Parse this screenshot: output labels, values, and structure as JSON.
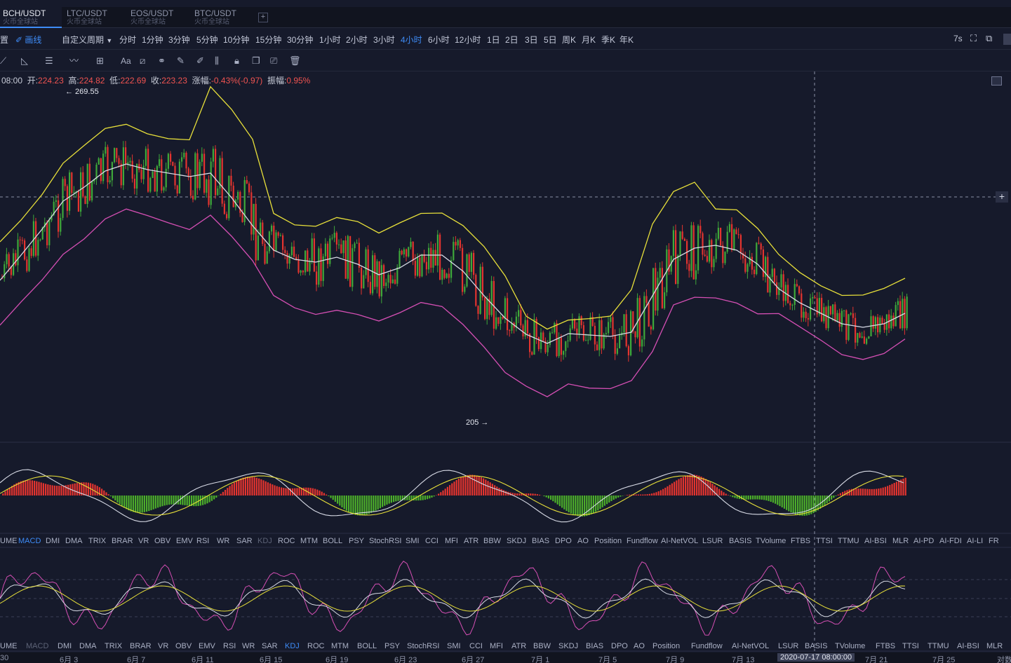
{
  "tabs": [
    {
      "pair": "BCH/USDT",
      "sub": "火币全球站"
    },
    {
      "pair": "LTC/USDT",
      "sub": "火币全球站"
    },
    {
      "pair": "EOS/USDT",
      "sub": "火币全球站"
    },
    {
      "pair": "BTC/USDT",
      "sub": "火币全球站"
    }
  ],
  "add_tab": "+",
  "toolbar": {
    "settings": "置",
    "draw": "画线",
    "custom_period": "自定义周期",
    "periods": [
      "分时",
      "1分钟",
      "3分钟",
      "5分钟",
      "10分钟",
      "15分钟",
      "30分钟",
      "1小时",
      "2小时",
      "3小时",
      "4小时",
      "6小时",
      "12小时",
      "1日",
      "2日",
      "3日",
      "5日",
      "周K",
      "月K",
      "季K",
      "年K"
    ],
    "active_period": "4小时",
    "refresh": "7s"
  },
  "ohlc": {
    "time": "08:00",
    "open_label": "开:",
    "open": "224.23",
    "high_label": "高:",
    "high": "224.82",
    "low_label": "低:",
    "low": "222.69",
    "close_label": "收:",
    "close": "223.23",
    "change_label": "涨幅:",
    "change": "-0.43%(-0.97)",
    "amp_label": "振幅:",
    "amp": "0.95%"
  },
  "annotations": {
    "high_marker": "← 269.55",
    "low_marker": "205 →"
  },
  "indicator_row1": [
    "UME",
    "MACD",
    "DMI",
    "DMA",
    "TRIX",
    "BRAR",
    "VR",
    "OBV",
    "EMV",
    "RSI",
    "WR",
    "SAR",
    "KDJ",
    "ROC",
    "MTM",
    "BOLL",
    "PSY",
    "StochRSI",
    "SMI",
    "CCI",
    "MFI",
    "ATR",
    "BBW",
    "SKDJ",
    "BIAS",
    "DPO",
    "AO",
    "Position",
    "Fundflow",
    "AI-NetVOL",
    "LSUR",
    "BASIS",
    "TVolume",
    "FTBS",
    "TTSI",
    "TTMU",
    "AI-BSI",
    "MLR",
    "AI-PD",
    "AI-FDI",
    "AI-LI",
    "FR"
  ],
  "indicator_row1_active": "MACD",
  "indicator_row1_dim": "KDJ",
  "indicator_row2": [
    "UME",
    "MACD",
    "DMI",
    "DMA",
    "TRIX",
    "BRAR",
    "VR",
    "OBV",
    "EMV",
    "RSI",
    "WR",
    "SAR",
    "KDJ",
    "ROC",
    "MTM",
    "BOLL",
    "PSY",
    "StochRSI",
    "SMI",
    "CCI",
    "MFI",
    "ATR",
    "BBW",
    "SKDJ",
    "BIAS",
    "DPO",
    "AO",
    "Position",
    "Fundflow",
    "AI-NetVOL",
    "LSUR",
    "BASIS",
    "TVolume",
    "FTBS",
    "TTSI",
    "TTMU",
    "AI-BSI",
    "MLR"
  ],
  "indicator_row2_active": "KDJ",
  "indicator_row2_dim": "MACD",
  "x_axis": [
    "30",
    "6月 3",
    "6月 7",
    "6月 11",
    "6月 15",
    "6月 19",
    "6月 23",
    "6月 27",
    "7月 1",
    "7月 5",
    "7月 9",
    "7月 13",
    "2020-07-17 08:00:00",
    "7月 21",
    "7月 25",
    "对数"
  ],
  "x_axis_highlight": "2020-07-17 08:00:00",
  "crosshair_plus": "+",
  "colors": {
    "up": "#26a69a",
    "down": "#ef5350",
    "candle_up": "#3fa83a",
    "candle_down": "#e3342f",
    "upper_band": "#e8e03a",
    "middle_band": "#d8dbe6",
    "lower_band": "#d54fb4",
    "accent": "#3e8cf7"
  },
  "icons": [
    "draw-pencil-icon",
    "line-icon",
    "angle-icon",
    "horizontal-lines-icon",
    "wave-icon",
    "grid-icon",
    "text-icon",
    "magnet-icon",
    "chain-icon",
    "ruler-icon",
    "brush-icon",
    "fib-icon",
    "lock-icon",
    "copy-icon",
    "screenshot-icon",
    "trash-icon",
    "fullscreen-icon",
    "popout-icon",
    "expand-icon"
  ]
}
